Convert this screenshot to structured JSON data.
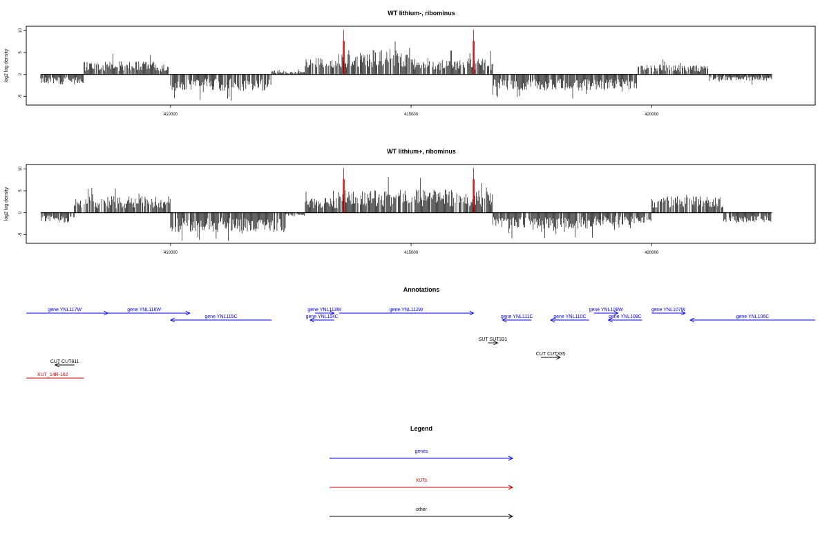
{
  "chart_data": [
    {
      "type": "bar",
      "title": "WT lithium-, ribominus",
      "xlabel": "",
      "ylabel": "log2 log density",
      "xlim": [
        407000,
        423400
      ],
      "ylim": [
        -7,
        11
      ],
      "xticks": [
        410000,
        415000,
        420000
      ],
      "yticks": [
        -5,
        0,
        5,
        10
      ],
      "baseline_range": [
        407300,
        422500
      ],
      "colors": {
        "forward": "#000000",
        "highlight": "#cc0000"
      },
      "profile": [
        {
          "start": 407300,
          "end": 408200,
          "mean": -1.5
        },
        {
          "start": 408200,
          "end": 409700,
          "mean": 2.0
        },
        {
          "start": 409700,
          "end": 410000,
          "mean": 1.5
        },
        {
          "start": 410000,
          "end": 412100,
          "mean": -2.5
        },
        {
          "start": 412100,
          "end": 412800,
          "mean": 0.5
        },
        {
          "start": 412800,
          "end": 413500,
          "mean": 2.5
        },
        {
          "start": 413500,
          "end": 415000,
          "mean": 4.0
        },
        {
          "start": 415000,
          "end": 416000,
          "mean": 2.5
        },
        {
          "start": 416000,
          "end": 416700,
          "mean": 2.5
        },
        {
          "start": 416700,
          "end": 419700,
          "mean": -2.5
        },
        {
          "start": 419700,
          "end": 421200,
          "mean": 1.5
        },
        {
          "start": 421200,
          "end": 422500,
          "mean": -1.0
        }
      ],
      "highlights": [
        {
          "x": 413600,
          "value": 10.2
        },
        {
          "x": 416300,
          "value": 10.2
        }
      ]
    },
    {
      "type": "bar",
      "title": "WT lithium+, ribominus",
      "xlabel": "",
      "ylabel": "log2 log density",
      "xlim": [
        407000,
        423400
      ],
      "ylim": [
        -7,
        11
      ],
      "xticks": [
        410000,
        415000,
        420000
      ],
      "yticks": [
        -5,
        0,
        5,
        10
      ],
      "baseline_range": [
        407300,
        422500
      ],
      "colors": {
        "forward": "#000000",
        "highlight": "#cc0000"
      },
      "profile": [
        {
          "start": 407300,
          "end": 408000,
          "mean": -1.5
        },
        {
          "start": 408000,
          "end": 410000,
          "mean": 2.5
        },
        {
          "start": 410000,
          "end": 412400,
          "mean": -3.0
        },
        {
          "start": 412400,
          "end": 412800,
          "mean": -0.5
        },
        {
          "start": 412800,
          "end": 413500,
          "mean": 2.5
        },
        {
          "start": 413500,
          "end": 415000,
          "mean": 3.5
        },
        {
          "start": 415000,
          "end": 416700,
          "mean": 3.5
        },
        {
          "start": 416700,
          "end": 418800,
          "mean": -2.5
        },
        {
          "start": 418800,
          "end": 420000,
          "mean": -2.0
        },
        {
          "start": 420000,
          "end": 421500,
          "mean": 2.5
        },
        {
          "start": 421500,
          "end": 422500,
          "mean": -1.5
        }
      ],
      "highlights": [
        {
          "x": 413600,
          "value": 10.2
        },
        {
          "x": 416300,
          "value": 10.2
        }
      ]
    }
  ],
  "annotations": {
    "title": "Annotations",
    "xlim": [
      407000,
      423400
    ],
    "colors": {
      "genes": "#0000ff",
      "XUTs": "#cc0000",
      "other": "#000000"
    },
    "features": [
      {
        "label": "gene YNL117W",
        "category": "genes",
        "start": 406900,
        "end": 408700,
        "strand": "+",
        "lane": 0
      },
      {
        "label": "gene YNL116W",
        "category": "genes",
        "start": 408500,
        "end": 410400,
        "strand": "+",
        "lane": 0
      },
      {
        "label": "gene YNL115C",
        "category": "genes",
        "start": 410000,
        "end": 412100,
        "strand": "-",
        "lane": 1
      },
      {
        "label": "gene YNL113W",
        "category": "genes",
        "start": 413000,
        "end": 413400,
        "strand": "+",
        "lane": 0
      },
      {
        "label": "gene YNL114C",
        "category": "genes",
        "start": 412900,
        "end": 413400,
        "strand": "-",
        "lane": 1
      },
      {
        "label": "gene YNL112W",
        "category": "genes",
        "start": 413500,
        "end": 416300,
        "strand": "+",
        "lane": 0
      },
      {
        "label": "gene YNL111C",
        "category": "genes",
        "start": 416900,
        "end": 417500,
        "strand": "-",
        "lane": 1
      },
      {
        "label": "gene YNL110C",
        "category": "genes",
        "start": 417900,
        "end": 418700,
        "strand": "-",
        "lane": 1
      },
      {
        "label": "gene YNL109W",
        "category": "genes",
        "start": 418800,
        "end": 419300,
        "strand": "+",
        "lane": 0
      },
      {
        "label": "gene YNL108C",
        "category": "genes",
        "start": 419100,
        "end": 419800,
        "strand": "-",
        "lane": 1
      },
      {
        "label": "gene YNL107W",
        "category": "genes",
        "start": 420000,
        "end": 420700,
        "strand": "+",
        "lane": 0
      },
      {
        "label": "gene YNL106C",
        "category": "genes",
        "start": 420800,
        "end": 423400,
        "strand": "-",
        "lane": 1
      },
      {
        "label": "SUT SUT331",
        "category": "other",
        "start": 416600,
        "end": 416800,
        "strand": "+",
        "lane": 2
      },
      {
        "label": "CUT CUT335",
        "category": "other",
        "start": 417700,
        "end": 418100,
        "strand": "+",
        "lane": 3
      },
      {
        "label": "CUT CUT811",
        "category": "other",
        "start": 407600,
        "end": 408000,
        "strand": "-",
        "lane": 4
      },
      {
        "label": "XUT_14R-162",
        "category": "XUTs",
        "start": 406900,
        "end": 408200,
        "strand": "+",
        "lane": 5
      }
    ]
  },
  "legend": {
    "title": "Legend",
    "entries": [
      {
        "label": "genes",
        "color": "#0000ff"
      },
      {
        "label": "XUTs",
        "color": "#cc0000"
      },
      {
        "label": "other",
        "color": "#000000"
      }
    ]
  }
}
